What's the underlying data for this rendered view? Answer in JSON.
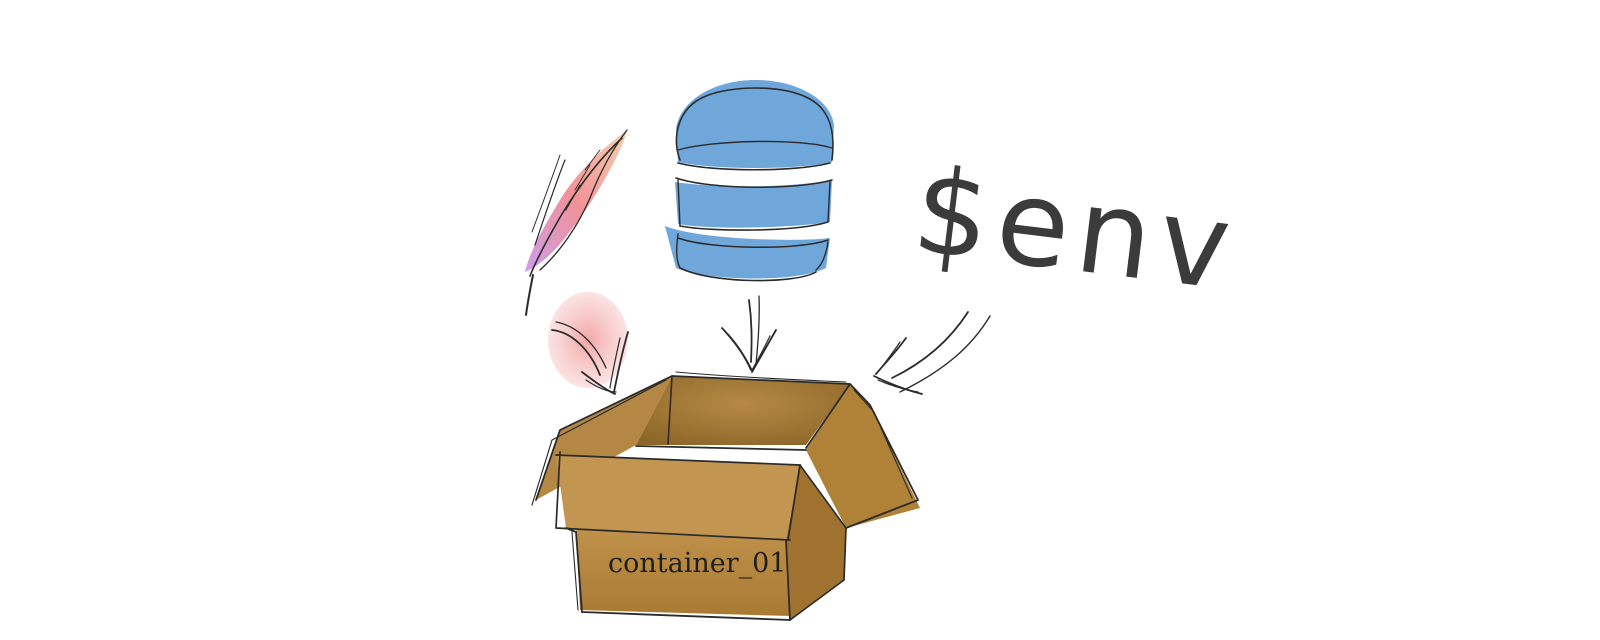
{
  "diagram": {
    "box_label": "container_01",
    "env_label": "$env"
  },
  "colors": {
    "database_blue": "#5b9bd5",
    "box_brown": "#b98c3e",
    "box_dark": "#8c6628",
    "feather_pink": "#ef7f86",
    "feather_purple": "#c58be6",
    "feather_peach": "#f5c9a0",
    "ink": "#2b2b2b"
  },
  "icons": [
    "feather-icon",
    "database-icon",
    "env-variable-text",
    "arrow-icon",
    "cardboard-box-icon"
  ]
}
